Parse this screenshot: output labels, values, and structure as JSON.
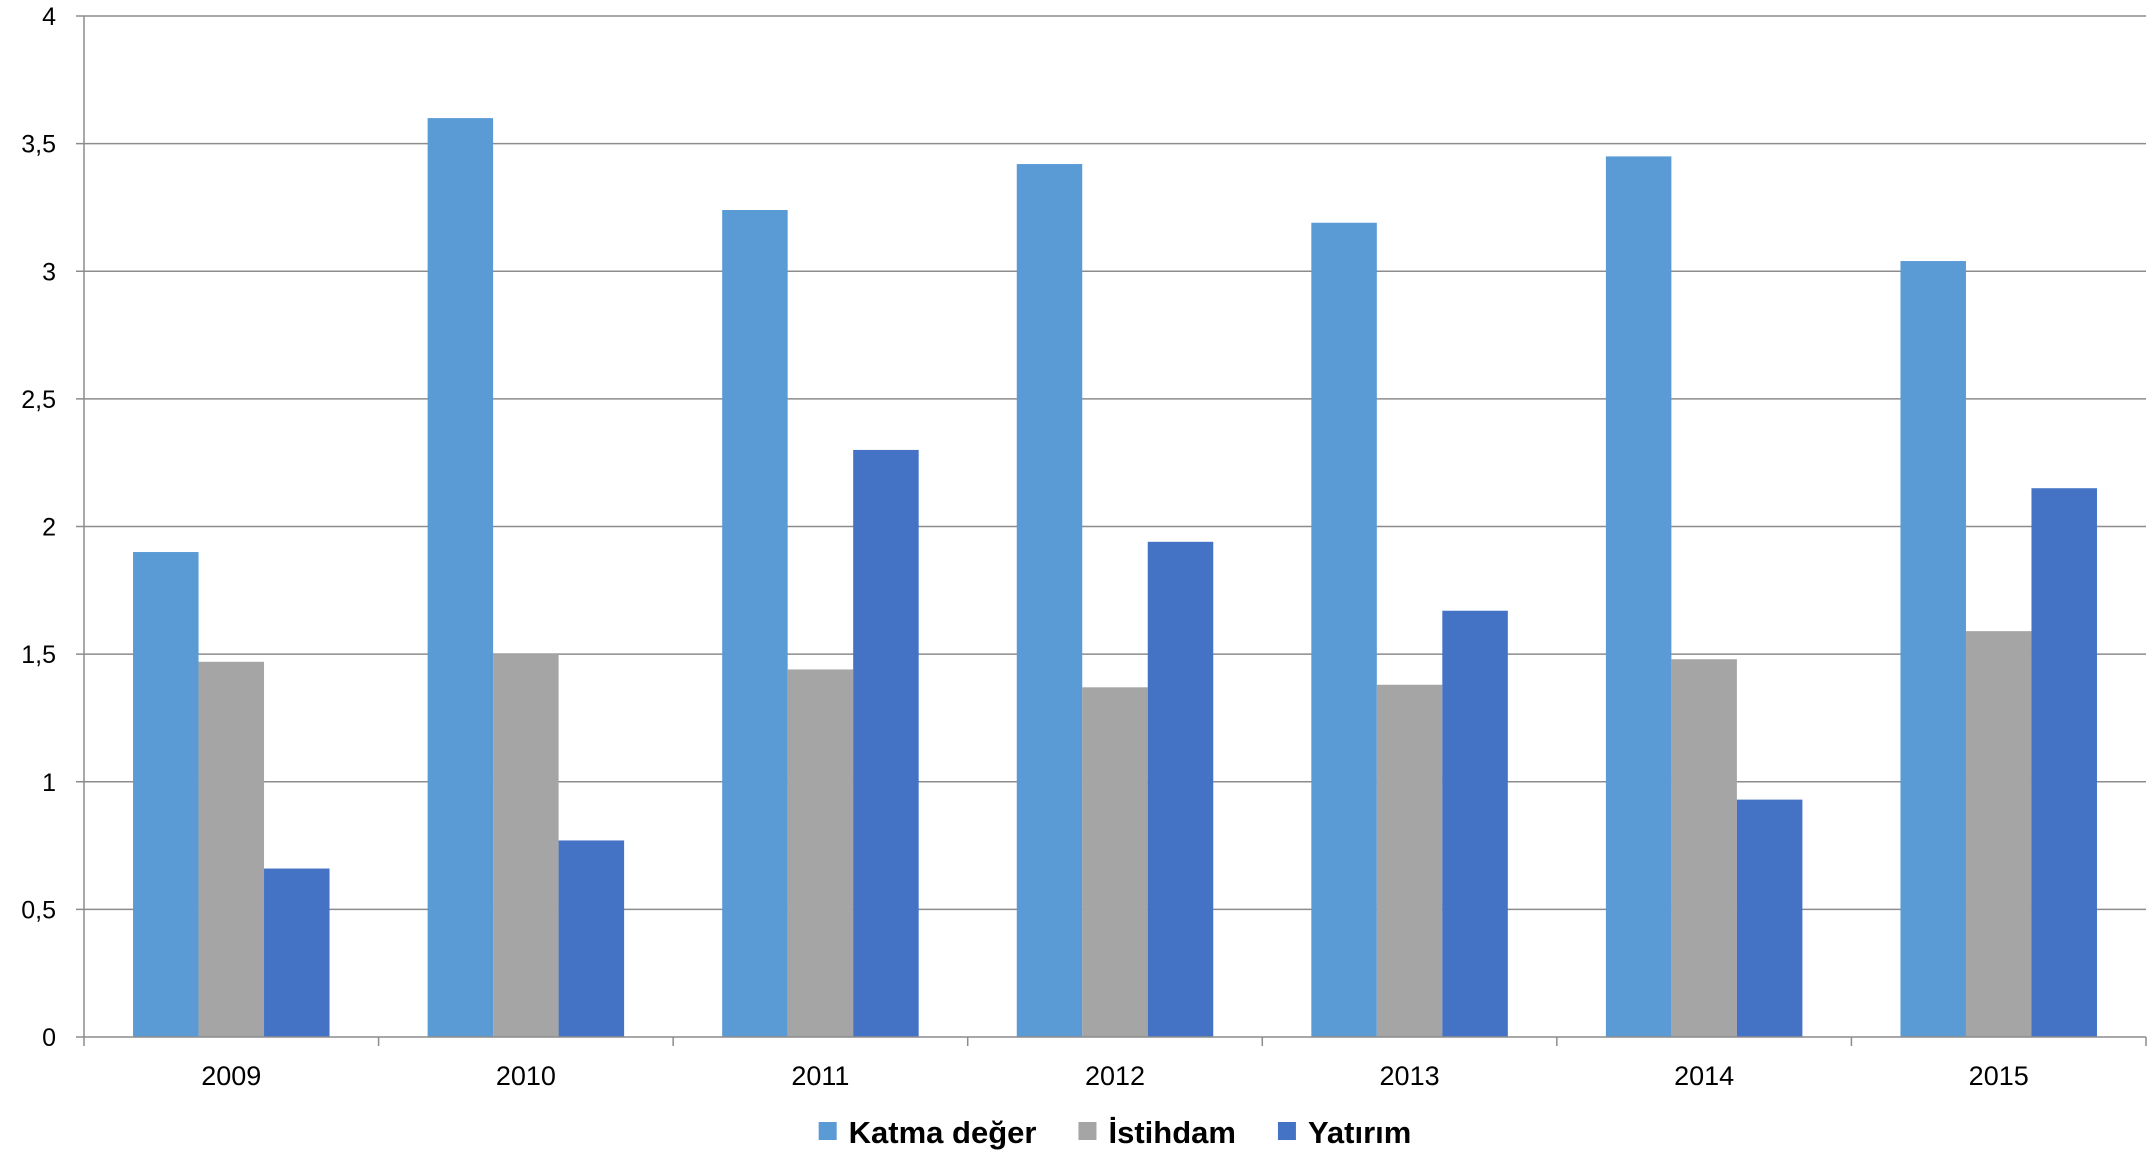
{
  "chart_data": {
    "type": "bar",
    "title": "",
    "xlabel": "",
    "ylabel": "",
    "ylim": [
      0,
      4
    ],
    "yticks": [
      "0",
      "0,5",
      "1",
      "1,5",
      "2",
      "2,5",
      "3",
      "3,5",
      "4"
    ],
    "grid": true,
    "legend_position": "bottom",
    "categories": [
      "2009",
      "2010",
      "2011",
      "2012",
      "2013",
      "2014",
      "2015"
    ],
    "series": [
      {
        "name": "Katma değer",
        "color": "#5B9BD5",
        "values": [
          1.9,
          3.6,
          3.24,
          3.42,
          3.19,
          3.45,
          3.04
        ]
      },
      {
        "name": "İstihdam",
        "color": "#A5A5A5",
        "values": [
          1.47,
          1.5,
          1.44,
          1.37,
          1.38,
          1.48,
          1.59
        ]
      },
      {
        "name": "Yatırım",
        "color": "#4472C4",
        "values": [
          0.66,
          0.77,
          2.3,
          1.94,
          1.67,
          0.93,
          2.15
        ]
      }
    ]
  }
}
